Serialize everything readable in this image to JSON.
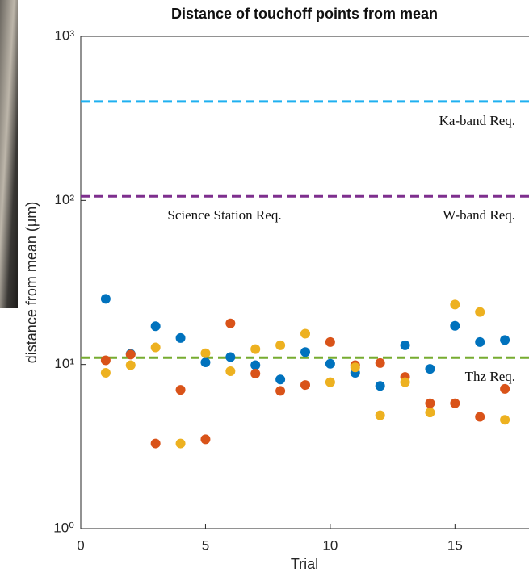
{
  "chart_data": {
    "type": "scatter",
    "title": "Distance of touchoff points from mean",
    "x_label": "Trial",
    "y_label": "distance from mean (μm)",
    "x": [
      1,
      2,
      3,
      4,
      5,
      6,
      7,
      8,
      9,
      10,
      11,
      12,
      13,
      14,
      15,
      16,
      17
    ],
    "series": [
      {
        "color": "#0072bd",
        "values": [
          25.1,
          11.6,
          17.1,
          14.5,
          10.3,
          11.1,
          9.9,
          8.1,
          11.9,
          10.1,
          8.9,
          7.4,
          13.1,
          9.4,
          17.2,
          13.7,
          14.1
        ]
      },
      {
        "color": "#d95319",
        "values": [
          10.6,
          11.5,
          3.3,
          7.0,
          3.5,
          17.8,
          8.8,
          6.9,
          7.5,
          13.7,
          9.9,
          10.2,
          8.4,
          5.8,
          5.8,
          4.8,
          7.1
        ]
      },
      {
        "color": "#edb120",
        "values": [
          8.9,
          9.9,
          12.7,
          3.3,
          11.7,
          9.1,
          12.4,
          13.1,
          15.4,
          7.8,
          9.6,
          4.9,
          7.8,
          5.1,
          23.2,
          20.9,
          4.6
        ]
      }
    ],
    "reference_lines": [
      {
        "value": 400,
        "color": "#1fb0f0",
        "labels": [
          "Ka-band Req."
        ]
      },
      {
        "value": 106,
        "color": "#7e2f8e",
        "labels": [
          "Science Station Req.",
          "W-band Req."
        ]
      },
      {
        "value": 11,
        "color": "#77ac30",
        "labels": [
          "Thz Req."
        ]
      }
    ],
    "xlim": [
      0,
      18
    ],
    "xticks": [
      0,
      5,
      10,
      15
    ],
    "yscale": "log",
    "ylim": [
      1,
      1000
    ],
    "yticks": [
      {
        "value": 1,
        "label": "10⁰"
      },
      {
        "value": 10,
        "label": "10¹"
      },
      {
        "value": 100,
        "label": "10²"
      },
      {
        "value": 1000,
        "label": "10³"
      }
    ]
  }
}
